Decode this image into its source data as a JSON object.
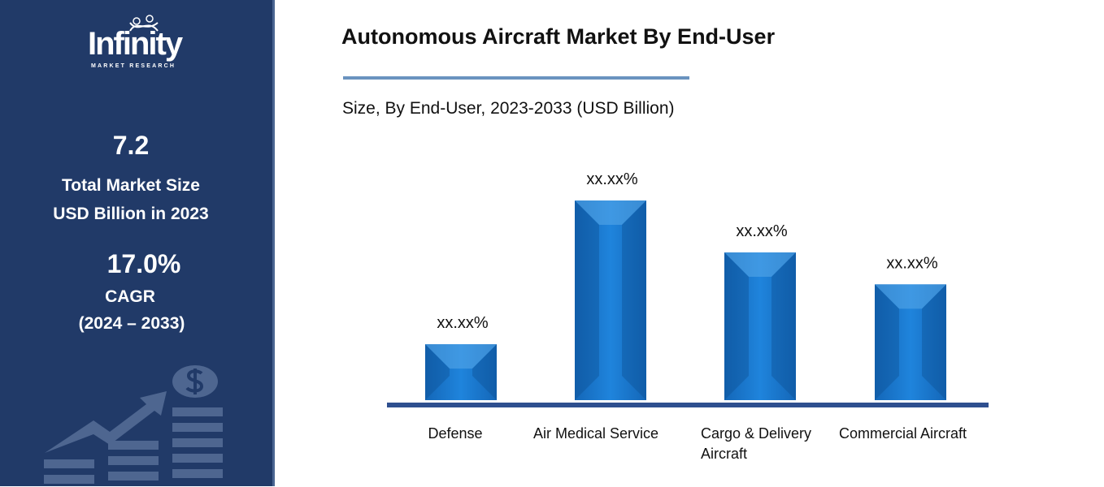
{
  "sidebar": {
    "logo_text": "Infinity",
    "logo_subtext": "MARKET RESEARCH",
    "market_size_value": "7.2",
    "market_size_label_1": "Total Market Size",
    "market_size_label_2": "USD Billion in 2023",
    "cagr_value": "17.0%",
    "cagr_label": "CAGR",
    "cagr_period": "(2024 – 2033)"
  },
  "colors": {
    "sidebar": "#213a68",
    "bar": "#1a7ad0",
    "axis": "#2e4f8f",
    "rule": "#6a93bf"
  },
  "chart_data": {
    "type": "bar",
    "title": "Autonomous Aircraft Market By End-User",
    "subtitle": "Size, By End-User, 2023-2033 (USD Billion)",
    "categories": [
      "Defense",
      "Air Medical Service",
      "Cargo & Delivery Aircraft",
      "Commercial Aircraft"
    ],
    "category_lines": [
      [
        "Defense"
      ],
      [
        "Air Medical Service"
      ],
      [
        "Cargo & Delivery",
        "Aircraft"
      ],
      [
        "Commercial Aircraft"
      ]
    ],
    "values": [
      28,
      100,
      74,
      58
    ],
    "data_labels": [
      "xx.xx%",
      "xx.xx%",
      "xx.xx%",
      "xx.xx%"
    ],
    "xlabel": "",
    "ylabel": "",
    "ylim": [
      0,
      100
    ],
    "grid": false,
    "legend": "none"
  }
}
